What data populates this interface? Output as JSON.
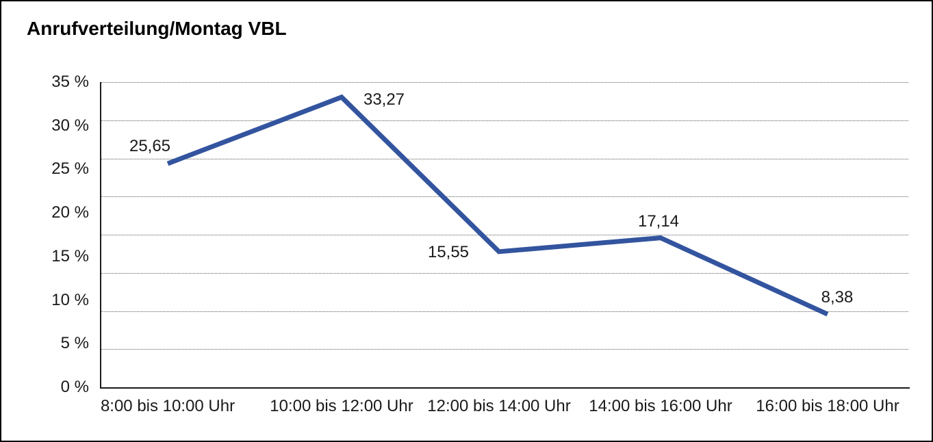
{
  "chart_data": {
    "type": "line",
    "title": "Anrufverteilung/Montag VBL",
    "categories": [
      "8:00 bis 10:00 Uhr",
      "10:00 bis 12:00 Uhr",
      "12:00 bis 14:00 Uhr",
      "14:00 bis 16:00 Uhr",
      "16:00 bis 18:00 Uhr"
    ],
    "values": [
      25.65,
      33.27,
      15.55,
      17.14,
      8.38
    ],
    "data_labels": [
      "25,65",
      "33,27",
      "15,55",
      "17,14",
      "8,38"
    ],
    "y_tick_labels": [
      "35 %",
      "30 %",
      "25 %",
      "20 %",
      "15 %",
      "10 %",
      "5 %",
      "0 %"
    ],
    "ylim": [
      0,
      35
    ],
    "xlabel": "",
    "ylabel": "",
    "grid": "horizontal-dotted",
    "legend": "none",
    "line_color": "#33549e",
    "axis_color": "#1a1a1a",
    "background_color": "#ffffff"
  }
}
